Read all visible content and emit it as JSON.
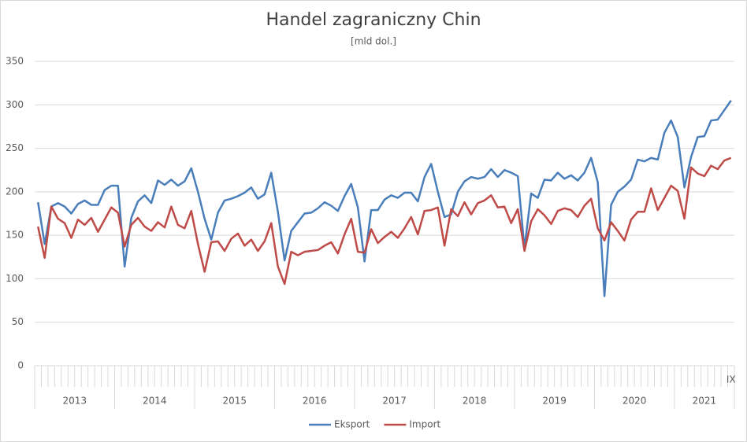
{
  "chart_data": {
    "type": "line",
    "title": "Handel zagraniczny Chin",
    "subtitle": "[mld dol.]",
    "categories": [
      null,
      null,
      null,
      null,
      null,
      null,
      null,
      null,
      null,
      null,
      null,
      null,
      null,
      null,
      null,
      null,
      null,
      null,
      null,
      null,
      null,
      null,
      null,
      null,
      null,
      null,
      null,
      null,
      null,
      null,
      null,
      null,
      null,
      null,
      null,
      null,
      null,
      null,
      null,
      null,
      null,
      null,
      null,
      null,
      null,
      null,
      null,
      null,
      null,
      null,
      null,
      null,
      null,
      null,
      null,
      null,
      null,
      null,
      null,
      null,
      null,
      null,
      null,
      null,
      null,
      null,
      null,
      null,
      null,
      null,
      null,
      null,
      null,
      null,
      null,
      null,
      null,
      null,
      null,
      null,
      null,
      null,
      null,
      null,
      null,
      null,
      null,
      null,
      null,
      null,
      null,
      null,
      null,
      null,
      null,
      null,
      null,
      null,
      null,
      null,
      null,
      null,
      null,
      null,
      "IX"
    ],
    "year_labels": [
      "2013",
      "2014",
      "2015",
      "2016",
      "2017",
      "2018",
      "2019",
      "2020",
      "2021"
    ],
    "series": [
      {
        "name": "Eksport",
        "color": "#4a7ebb",
        "values": [
          188,
          140,
          183,
          187,
          183,
          175,
          186,
          190,
          185,
          185,
          202,
          207,
          207,
          114,
          170,
          189,
          196,
          187,
          213,
          208,
          214,
          207,
          212,
          227,
          200,
          169,
          145,
          176,
          190,
          192,
          195,
          199,
          205,
          192,
          197,
          222,
          177,
          121,
          155,
          165,
          175,
          176,
          181,
          188,
          184,
          178,
          195,
          209,
          182,
          120,
          179,
          179,
          191,
          196,
          193,
          199,
          199,
          189,
          217,
          232,
          200,
          171,
          174,
          200,
          212,
          217,
          215,
          217,
          226,
          217,
          225,
          222,
          218,
          135,
          198,
          193,
          214,
          213,
          222,
          215,
          219,
          213,
          222,
          239,
          211,
          80,
          185,
          200,
          206,
          214,
          237,
          235,
          239,
          237,
          268,
          282,
          263,
          205,
          240,
          263,
          264,
          282,
          283,
          294,
          305
        ]
      },
      {
        "name": "Import",
        "color": "#be4b48",
        "values": [
          160,
          124,
          183,
          169,
          164,
          147,
          168,
          162,
          170,
          154,
          168,
          182,
          176,
          137,
          162,
          170,
          160,
          155,
          165,
          159,
          183,
          162,
          158,
          178,
          140,
          108,
          142,
          143,
          132,
          146,
          152,
          138,
          145,
          132,
          143,
          164,
          114,
          94,
          131,
          127,
          131,
          132,
          133,
          138,
          142,
          129,
          151,
          169,
          131,
          130,
          157,
          141,
          148,
          154,
          147,
          158,
          171,
          151,
          178,
          179,
          182,
          138,
          180,
          172,
          188,
          174,
          187,
          190,
          196,
          182,
          183,
          164,
          180,
          132,
          166,
          180,
          173,
          163,
          178,
          181,
          179,
          171,
          184,
          192,
          158,
          144,
          165,
          155,
          144,
          168,
          177,
          177,
          204,
          179,
          193,
          207,
          201,
          169,
          228,
          221,
          218,
          230,
          226,
          236,
          239
        ]
      }
    ],
    "ylim": [
      0,
      350
    ],
    "yticks": [
      0,
      50,
      100,
      150,
      200,
      250,
      300,
      350
    ],
    "grid": true,
    "legend": "bottom"
  }
}
